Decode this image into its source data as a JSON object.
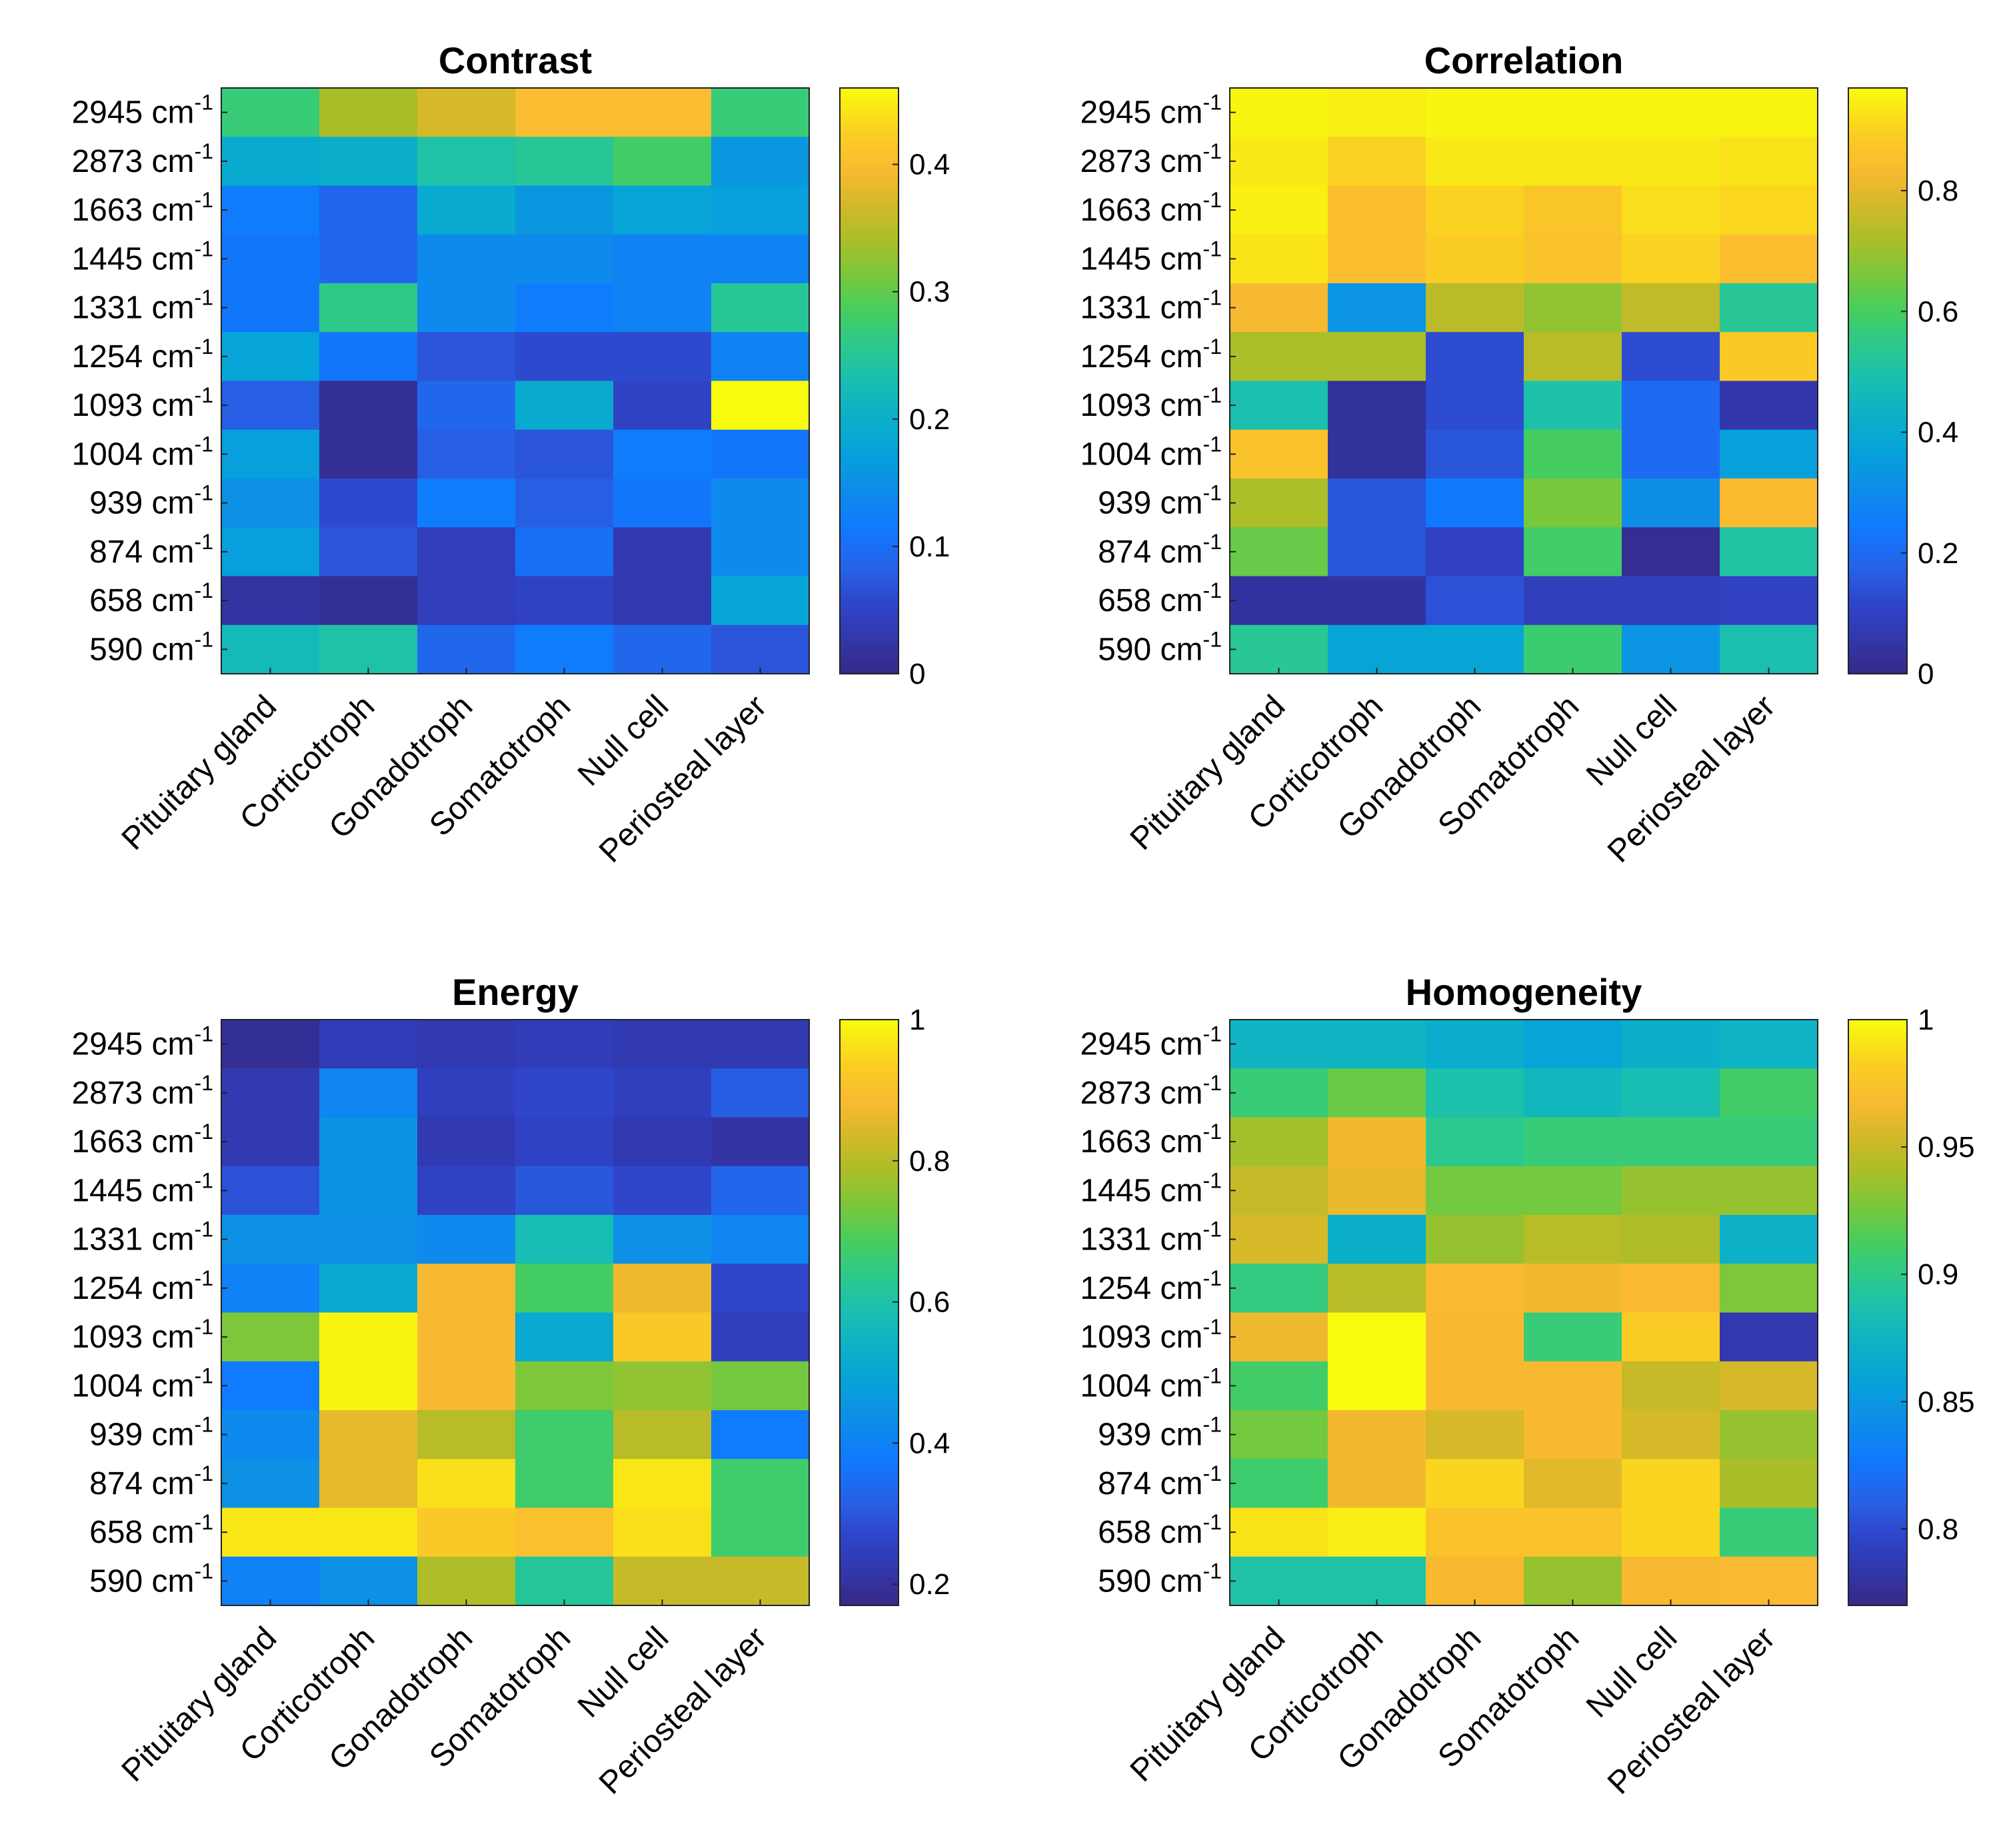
{
  "chart_data": [
    {
      "type": "heatmap",
      "title": "Contrast",
      "rows": [
        "2945",
        "2873",
        "1663",
        "1445",
        "1331",
        "1254",
        "1093",
        "1004",
        "939",
        "874",
        "658",
        "590"
      ],
      "row_unit": "cm",
      "row_unit_exp": "-1",
      "columns": [
        "Pituitary gland",
        "Corticotroph",
        "Gonadotroph",
        "Somatotroph",
        "Null cell",
        "Periosteal layer"
      ],
      "clim": [
        0,
        0.46
      ],
      "colorbar_ticks": [
        0,
        0.1,
        0.2,
        0.3,
        0.4
      ],
      "colorbar_tick_labels": [
        "0",
        "0.1",
        "0.2",
        "0.3",
        "0.4"
      ],
      "values": [
        [
          0.27,
          0.34,
          0.37,
          0.4,
          0.4,
          0.27
        ],
        [
          0.19,
          0.2,
          0.24,
          0.25,
          0.28,
          0.16
        ],
        [
          0.12,
          0.09,
          0.19,
          0.16,
          0.18,
          0.17
        ],
        [
          0.11,
          0.09,
          0.14,
          0.14,
          0.13,
          0.13
        ],
        [
          0.11,
          0.26,
          0.14,
          0.12,
          0.13,
          0.25
        ],
        [
          0.18,
          0.11,
          0.07,
          0.06,
          0.06,
          0.13
        ],
        [
          0.08,
          0.01,
          0.09,
          0.19,
          0.05,
          0.46
        ],
        [
          0.17,
          0.01,
          0.08,
          0.07,
          0.12,
          0.11
        ],
        [
          0.15,
          0.06,
          0.12,
          0.08,
          0.11,
          0.14
        ],
        [
          0.17,
          0.07,
          0.04,
          0.1,
          0.03,
          0.14
        ],
        [
          0.02,
          0.01,
          0.04,
          0.05,
          0.03,
          0.18
        ],
        [
          0.22,
          0.24,
          0.09,
          0.12,
          0.09,
          0.07
        ]
      ]
    },
    {
      "type": "heatmap",
      "title": "Correlation",
      "rows": [
        "2945",
        "2873",
        "1663",
        "1445",
        "1331",
        "1254",
        "1093",
        "1004",
        "939",
        "874",
        "658",
        "590"
      ],
      "row_unit": "cm",
      "row_unit_exp": "-1",
      "columns": [
        "Pituitary gland",
        "Corticotroph",
        "Gonadotroph",
        "Somatotroph",
        "Null cell",
        "Periosteal layer"
      ],
      "clim": [
        0,
        0.97
      ],
      "colorbar_ticks": [
        0,
        0.2,
        0.4,
        0.6,
        0.8
      ],
      "colorbar_tick_labels": [
        "0",
        "0.2",
        "0.4",
        "0.6",
        "0.8"
      ],
      "values": [
        [
          0.96,
          0.95,
          0.96,
          0.96,
          0.96,
          0.96
        ],
        [
          0.94,
          0.9,
          0.94,
          0.94,
          0.94,
          0.93
        ],
        [
          0.95,
          0.85,
          0.9,
          0.87,
          0.92,
          0.91
        ],
        [
          0.93,
          0.85,
          0.89,
          0.86,
          0.9,
          0.85
        ],
        [
          0.83,
          0.33,
          0.74,
          0.69,
          0.75,
          0.53
        ],
        [
          0.72,
          0.72,
          0.13,
          0.74,
          0.13,
          0.88
        ],
        [
          0.49,
          0.03,
          0.13,
          0.5,
          0.2,
          0.06
        ],
        [
          0.86,
          0.03,
          0.15,
          0.6,
          0.2,
          0.36
        ],
        [
          0.72,
          0.15,
          0.24,
          0.66,
          0.31,
          0.84
        ],
        [
          0.64,
          0.15,
          0.1,
          0.59,
          0.02,
          0.51
        ],
        [
          0.04,
          0.04,
          0.14,
          0.09,
          0.09,
          0.1
        ],
        [
          0.53,
          0.38,
          0.38,
          0.58,
          0.33,
          0.49
        ]
      ]
    },
    {
      "type": "heatmap",
      "title": "Energy",
      "rows": [
        "2945",
        "2873",
        "1663",
        "1445",
        "1331",
        "1254",
        "1093",
        "1004",
        "939",
        "874",
        "658",
        "590"
      ],
      "row_unit": "cm",
      "row_unit_exp": "-1",
      "columns": [
        "Pituitary gland",
        "Corticotroph",
        "Gonadotroph",
        "Somatotroph",
        "Null cell",
        "Periosteal layer"
      ],
      "clim": [
        0.17,
        1.0
      ],
      "colorbar_ticks": [
        0.2,
        0.4,
        0.6,
        0.8,
        1.0
      ],
      "colorbar_tick_labels": [
        "0.2",
        "0.4",
        "0.6",
        "0.8",
        "1"
      ],
      "values": [
        [
          0.19,
          0.24,
          0.23,
          0.24,
          0.23,
          0.23
        ],
        [
          0.23,
          0.41,
          0.25,
          0.27,
          0.25,
          0.31
        ],
        [
          0.23,
          0.45,
          0.23,
          0.26,
          0.23,
          0.21
        ],
        [
          0.29,
          0.45,
          0.26,
          0.3,
          0.27,
          0.33
        ],
        [
          0.44,
          0.44,
          0.42,
          0.58,
          0.44,
          0.41
        ],
        [
          0.4,
          0.51,
          0.88,
          0.68,
          0.87,
          0.27
        ],
        [
          0.74,
          0.99,
          0.88,
          0.51,
          0.92,
          0.25
        ],
        [
          0.38,
          0.99,
          0.88,
          0.74,
          0.76,
          0.73
        ],
        [
          0.42,
          0.86,
          0.8,
          0.67,
          0.8,
          0.38
        ],
        [
          0.44,
          0.86,
          0.96,
          0.67,
          0.97,
          0.67
        ],
        [
          0.97,
          0.97,
          0.92,
          0.9,
          0.96,
          0.67
        ],
        [
          0.4,
          0.44,
          0.79,
          0.62,
          0.82,
          0.82
        ]
      ]
    },
    {
      "type": "heatmap",
      "title": "Homogeneity",
      "rows": [
        "2945",
        "2873",
        "1663",
        "1445",
        "1331",
        "1254",
        "1093",
        "1004",
        "939",
        "874",
        "658",
        "590"
      ],
      "row_unit": "cm",
      "row_unit_exp": "-1",
      "columns": [
        "Pituitary gland",
        "Corticotroph",
        "Gonadotroph",
        "Somatotroph",
        "Null cell",
        "Periosteal layer"
      ],
      "clim": [
        0.77,
        1.0
      ],
      "colorbar_ticks": [
        0.8,
        0.85,
        0.9,
        0.95,
        1.0
      ],
      "colorbar_tick_labels": [
        "0.8",
        "0.85",
        "0.9",
        "0.95",
        "1"
      ],
      "values": [
        [
          0.875,
          0.875,
          0.868,
          0.86,
          0.87,
          0.874
        ],
        [
          0.905,
          0.922,
          0.888,
          0.878,
          0.885,
          0.91
        ],
        [
          0.938,
          0.965,
          0.898,
          0.905,
          0.905,
          0.905
        ],
        [
          0.95,
          0.962,
          0.925,
          0.925,
          0.935,
          0.935
        ],
        [
          0.955,
          0.87,
          0.935,
          0.945,
          0.942,
          0.872
        ],
        [
          0.903,
          0.945,
          0.968,
          0.965,
          0.968,
          0.928
        ],
        [
          0.964,
          1.0,
          0.967,
          0.905,
          0.98,
          0.785
        ],
        [
          0.91,
          1.0,
          0.967,
          0.967,
          0.95,
          0.955
        ],
        [
          0.925,
          0.965,
          0.955,
          0.967,
          0.955,
          0.935
        ],
        [
          0.908,
          0.965,
          0.985,
          0.96,
          0.985,
          0.94
        ],
        [
          0.99,
          0.995,
          0.975,
          0.975,
          0.985,
          0.905
        ],
        [
          0.89,
          0.89,
          0.967,
          0.935,
          0.967,
          0.968
        ]
      ]
    }
  ]
}
